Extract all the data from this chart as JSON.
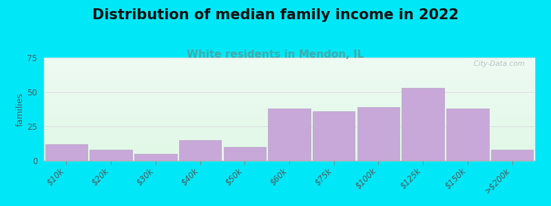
{
  "title": "Distribution of median family income in 2022",
  "subtitle": "White residents in Mendon, IL",
  "categories": [
    "$10k",
    "$20k",
    "$30k",
    "$40k",
    "$50k",
    "$60k",
    "$75k",
    "$100k",
    "$125k",
    "$150k",
    ">$200k"
  ],
  "values": [
    12,
    8,
    5,
    15,
    10,
    38,
    36,
    39,
    53,
    38,
    8
  ],
  "bar_color": "#c8a8d8",
  "bar_edge_color": "#b8a0c8",
  "ylabel": "families",
  "ylim": [
    0,
    75
  ],
  "yticks": [
    0,
    25,
    50,
    75
  ],
  "background_outer": "#00e8f8",
  "title_fontsize": 15,
  "subtitle_fontsize": 11,
  "subtitle_color": "#44aaaa",
  "watermark": "  City-Data.com",
  "title_fontweight": "bold",
  "grid_color": "#dddddd",
  "tick_label_color": "#555555",
  "ylabel_color": "#555555"
}
